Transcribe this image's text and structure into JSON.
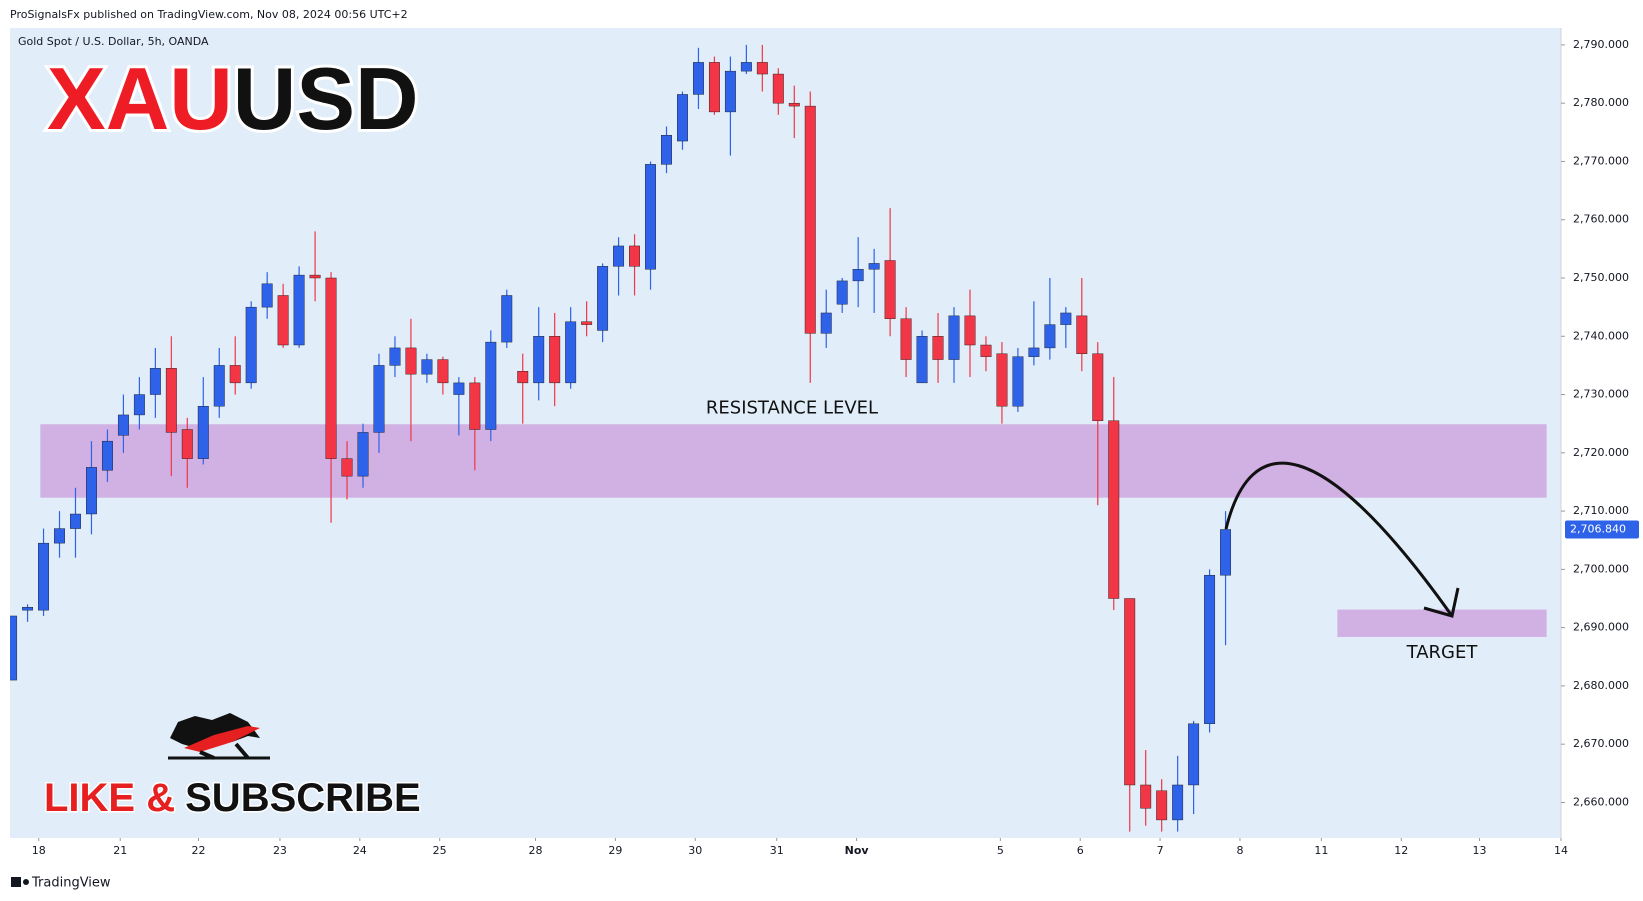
{
  "header": "ProSignalsFx published on TradingView.com, Nov 08, 2024 00:56 UTC+2",
  "footer": "TradingView",
  "branding": {
    "title_part1": "XAU",
    "title_part2": "USD",
    "cta_part1": "LIKE &",
    "cta_part2": "SUBSCRIBE"
  },
  "chart_data": {
    "type": "candlestick",
    "subtitle": "Gold Spot / U.S. Dollar, 5h, OANDA",
    "up_color": "#2e62e8",
    "down_color": "#f23645",
    "open": [
      2681,
      2693,
      2693,
      2704.5,
      2707,
      2709.5,
      2717,
      2723,
      2726.5,
      2730,
      2734.5,
      2724,
      2719,
      2728,
      2735,
      2732,
      2745,
      2747,
      2738.5,
      2750.5,
      2750,
      2719,
      2716,
      2723.5,
      2735,
      2738,
      2733.5,
      2736,
      2730,
      2732,
      2724,
      2739,
      2734,
      2732,
      2740,
      2732,
      2742.5,
      2741,
      2752,
      2755.5,
      2751.5,
      2769.5,
      2773.5,
      2781.5,
      2787,
      2778.5,
      2785.5,
      2787,
      2785,
      2780,
      2779.5,
      2740.5,
      2745.5,
      2749.5,
      2751.5,
      2753,
      2743,
      2732,
      2740,
      2736,
      2743.5,
      2738.5,
      2737,
      2728,
      2736.5,
      2738,
      2742,
      2743.5,
      2737,
      2725.5,
      2695,
      2663,
      2662,
      2657,
      2663,
      2673.5,
      2699
    ],
    "high": [
      2692,
      2694,
      2707,
      2710,
      2714,
      2722,
      2724,
      2730,
      2733,
      2738,
      2740,
      2726,
      2733,
      2738,
      2740,
      2746,
      2751,
      2749,
      2752,
      2758,
      2751,
      2722,
      2725,
      2737,
      2740,
      2743,
      2737,
      2736.5,
      2733,
      2733,
      2741,
      2748,
      2737,
      2745,
      2744,
      2745,
      2746,
      2752.5,
      2757,
      2757.5,
      2770,
      2776,
      2782,
      2789.5,
      2788,
      2788,
      2790,
      2790,
      2786,
      2783,
      2782,
      2748,
      2750,
      2757,
      2755,
      2762,
      2745,
      2741,
      2744,
      2745,
      2748,
      2740,
      2739,
      2738,
      2746,
      2750,
      2745,
      2750,
      2739,
      2733,
      2695,
      2669,
      2664,
      2668,
      2674,
      2700,
      2710
    ],
    "low": [
      2681,
      2691,
      2692,
      2702,
      2702,
      2706,
      2715,
      2720,
      2724,
      2726,
      2716,
      2714,
      2718,
      2726,
      2730,
      2731,
      2743,
      2738,
      2738,
      2746,
      2708,
      2712,
      2714,
      2720,
      2733,
      2722,
      2732,
      2730,
      2723,
      2717,
      2722,
      2738,
      2725,
      2729,
      2728,
      2731,
      2740,
      2739,
      2747,
      2747,
      2748,
      2768,
      2772,
      2779,
      2778,
      2771,
      2785,
      2782,
      2778,
      2774,
      2732,
      2738,
      2744,
      2745,
      2744,
      2740,
      2733,
      2732,
      2732,
      2732,
      2733,
      2734,
      2725,
      2727,
      2735,
      2736,
      2738,
      2734,
      2711,
      2693,
      2655,
      2656,
      2655,
      2655,
      2658,
      2672,
      2687
    ],
    "close": [
      2692,
      2693.5,
      2704.5,
      2707,
      2709.5,
      2717.5,
      2722,
      2726.5,
      2730,
      2734.5,
      2723.5,
      2719,
      2728,
      2735,
      2732,
      2745,
      2749,
      2738.5,
      2750.5,
      2750,
      2719,
      2716,
      2723.5,
      2735,
      2738,
      2733.5,
      2736,
      2732,
      2732,
      2724,
      2739,
      2747,
      2732,
      2740,
      2732,
      2742.5,
      2742,
      2752,
      2755.5,
      2752,
      2769.5,
      2774.5,
      2781.5,
      2787,
      2778.5,
      2785.5,
      2787,
      2785,
      2780,
      2779.5,
      2740.5,
      2744,
      2749.5,
      2751.5,
      2752.5,
      2743,
      2736,
      2740,
      2736,
      2743.5,
      2738.5,
      2736.5,
      2728,
      2736.5,
      2738,
      2742,
      2744,
      2737,
      2725.5,
      2695,
      2663,
      2659,
      2657,
      2663,
      2673.5,
      2699,
      2706.84
    ],
    "xlim": [
      -0.1,
      97
    ],
    "xticks": [
      {
        "value": 1.7,
        "label": "18"
      },
      {
        "value": 6.8,
        "label": "21"
      },
      {
        "value": 11.7,
        "label": "22"
      },
      {
        "value": 16.8,
        "label": "23"
      },
      {
        "value": 21.8,
        "label": "24"
      },
      {
        "value": 26.8,
        "label": "25"
      },
      {
        "value": 32.8,
        "label": "28"
      },
      {
        "value": 37.8,
        "label": "29"
      },
      {
        "value": 42.8,
        "label": "30"
      },
      {
        "value": 47.9,
        "label": "31"
      },
      {
        "value": 52.9,
        "label": "Nov"
      },
      {
        "value": 61.9,
        "label": "5"
      },
      {
        "value": 66.9,
        "label": "6"
      },
      {
        "value": 71.9,
        "label": "7"
      },
      {
        "value": 76.9,
        "label": "8"
      },
      {
        "value": 82,
        "label": "11"
      },
      {
        "value": 87,
        "label": "12"
      },
      {
        "value": 91.9,
        "label": "13"
      },
      {
        "value": 97,
        "label": "14"
      }
    ],
    "ylim": [
      2653.9,
      2792.9
    ],
    "yticks": [
      {
        "value": 2660,
        "label": "2,660.000"
      },
      {
        "value": 2670,
        "label": "2,670.000"
      },
      {
        "value": 2680,
        "label": "2,680.000"
      },
      {
        "value": 2690,
        "label": "2,690.000"
      },
      {
        "value": 2700,
        "label": "2,700.000"
      },
      {
        "value": 2710,
        "label": "2,710.000"
      },
      {
        "value": 2720,
        "label": "2,720.000"
      },
      {
        "value": 2730,
        "label": "2,730.000"
      },
      {
        "value": 2740,
        "label": "2,740.000"
      },
      {
        "value": 2750,
        "label": "2,750.000"
      },
      {
        "value": 2760,
        "label": "2,760.000"
      },
      {
        "value": 2770,
        "label": "2,770.000"
      },
      {
        "value": 2780,
        "label": "2,780.000"
      },
      {
        "value": 2790,
        "label": "2,790.000"
      }
    ],
    "last_price": {
      "value": 2706.84,
      "label": "2,706.840",
      "color": "#2e62e8"
    },
    "zones": [
      {
        "label": "RESISTANCE LEVEL",
        "y": [
          2712.3,
          2724.9
        ],
        "x": [
          1.8,
          96.1
        ],
        "color": "#cfa9e0"
      },
      {
        "label": "TARGET",
        "y": [
          2688.4,
          2693.1
        ],
        "x": [
          83,
          96.1
        ],
        "color": "#cfa9e0"
      }
    ]
  }
}
